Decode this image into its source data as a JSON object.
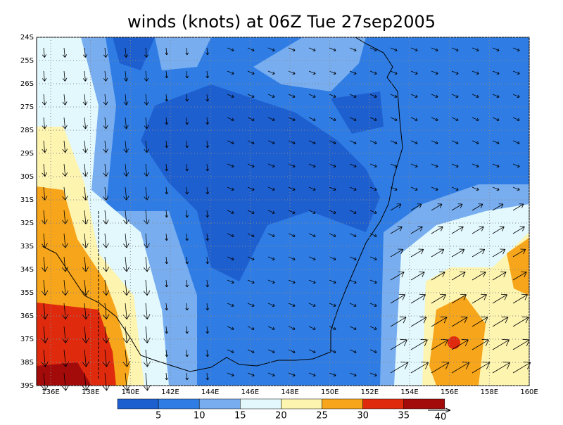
{
  "title": "winds (knots) at 06Z Tue 27sep2005",
  "lat_labels": [
    "24S",
    "25S",
    "26S",
    "27S",
    "28S",
    "29S",
    "30S",
    "31S",
    "32S",
    "33S",
    "34S",
    "35S",
    "36S",
    "37S",
    "38S",
    "39S"
  ],
  "lon_labels": [
    "136E",
    "138E",
    "140E",
    "142E",
    "144E",
    "146E",
    "148E",
    "150E",
    "152E",
    "154E",
    "156E",
    "158E",
    "160E"
  ],
  "colorbar": {
    "levels": [
      5,
      10,
      15,
      20,
      25,
      30,
      35
    ],
    "colors": [
      "#1e5fd0",
      "#2f7de4",
      "#78aef0",
      "#e2f8fd",
      "#fdf4b0",
      "#f7a51a",
      "#e02a0e",
      "#a30b0b"
    ],
    "vector_label": 40
  }
}
